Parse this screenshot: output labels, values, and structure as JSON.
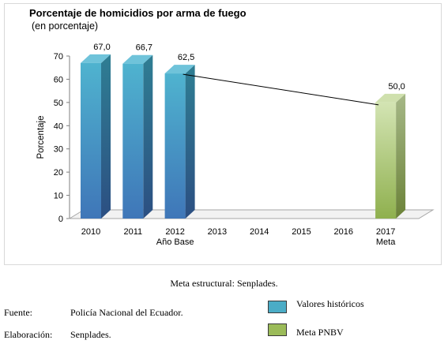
{
  "chart_data": {
    "type": "bar",
    "title": "Porcentaje de homicidios por arma de fuego",
    "subtitle": "(en porcentaje)",
    "ylabel": "Porcentaje",
    "ylim": [
      0,
      70
    ],
    "yticks": [
      0,
      10,
      20,
      30,
      40,
      50,
      60,
      70
    ],
    "categories": [
      "2010",
      "2011",
      "2012",
      "2013",
      "2014",
      "2015",
      "2016",
      "2017"
    ],
    "category_sublabels": {
      "2012": "Año Base",
      "2017": "Meta"
    },
    "series": [
      {
        "name": "Valores históricos",
        "color": "#4bacc6",
        "values": [
          67.0,
          66.7,
          62.5,
          null,
          null,
          null,
          null,
          null
        ],
        "labels": [
          "67,0",
          "66,7",
          "62,5",
          "",
          "",
          "",
          "",
          ""
        ]
      },
      {
        "name": "Meta PNBV",
        "color": "#9bbb59",
        "values": [
          null,
          null,
          null,
          null,
          null,
          null,
          null,
          50.0
        ],
        "labels": [
          "",
          "",
          "",
          "",
          "",
          "",
          "",
          "50,0"
        ]
      }
    ],
    "trend_line": {
      "from": "2012",
      "to": "2017"
    },
    "grid": false,
    "legend_position": "bottom-right"
  },
  "note": "Meta estructural: Senplades.",
  "footer": {
    "source_label": "Fuente:",
    "source_value": "Policía Nacional del Ecuador.",
    "made_label": "Elaboración:",
    "made_value": "Senplades."
  },
  "legend": [
    {
      "label": "Valores históricos",
      "color": "#4bacc6"
    },
    {
      "label": "Meta PNBV",
      "color": "#9bbb59"
    }
  ]
}
